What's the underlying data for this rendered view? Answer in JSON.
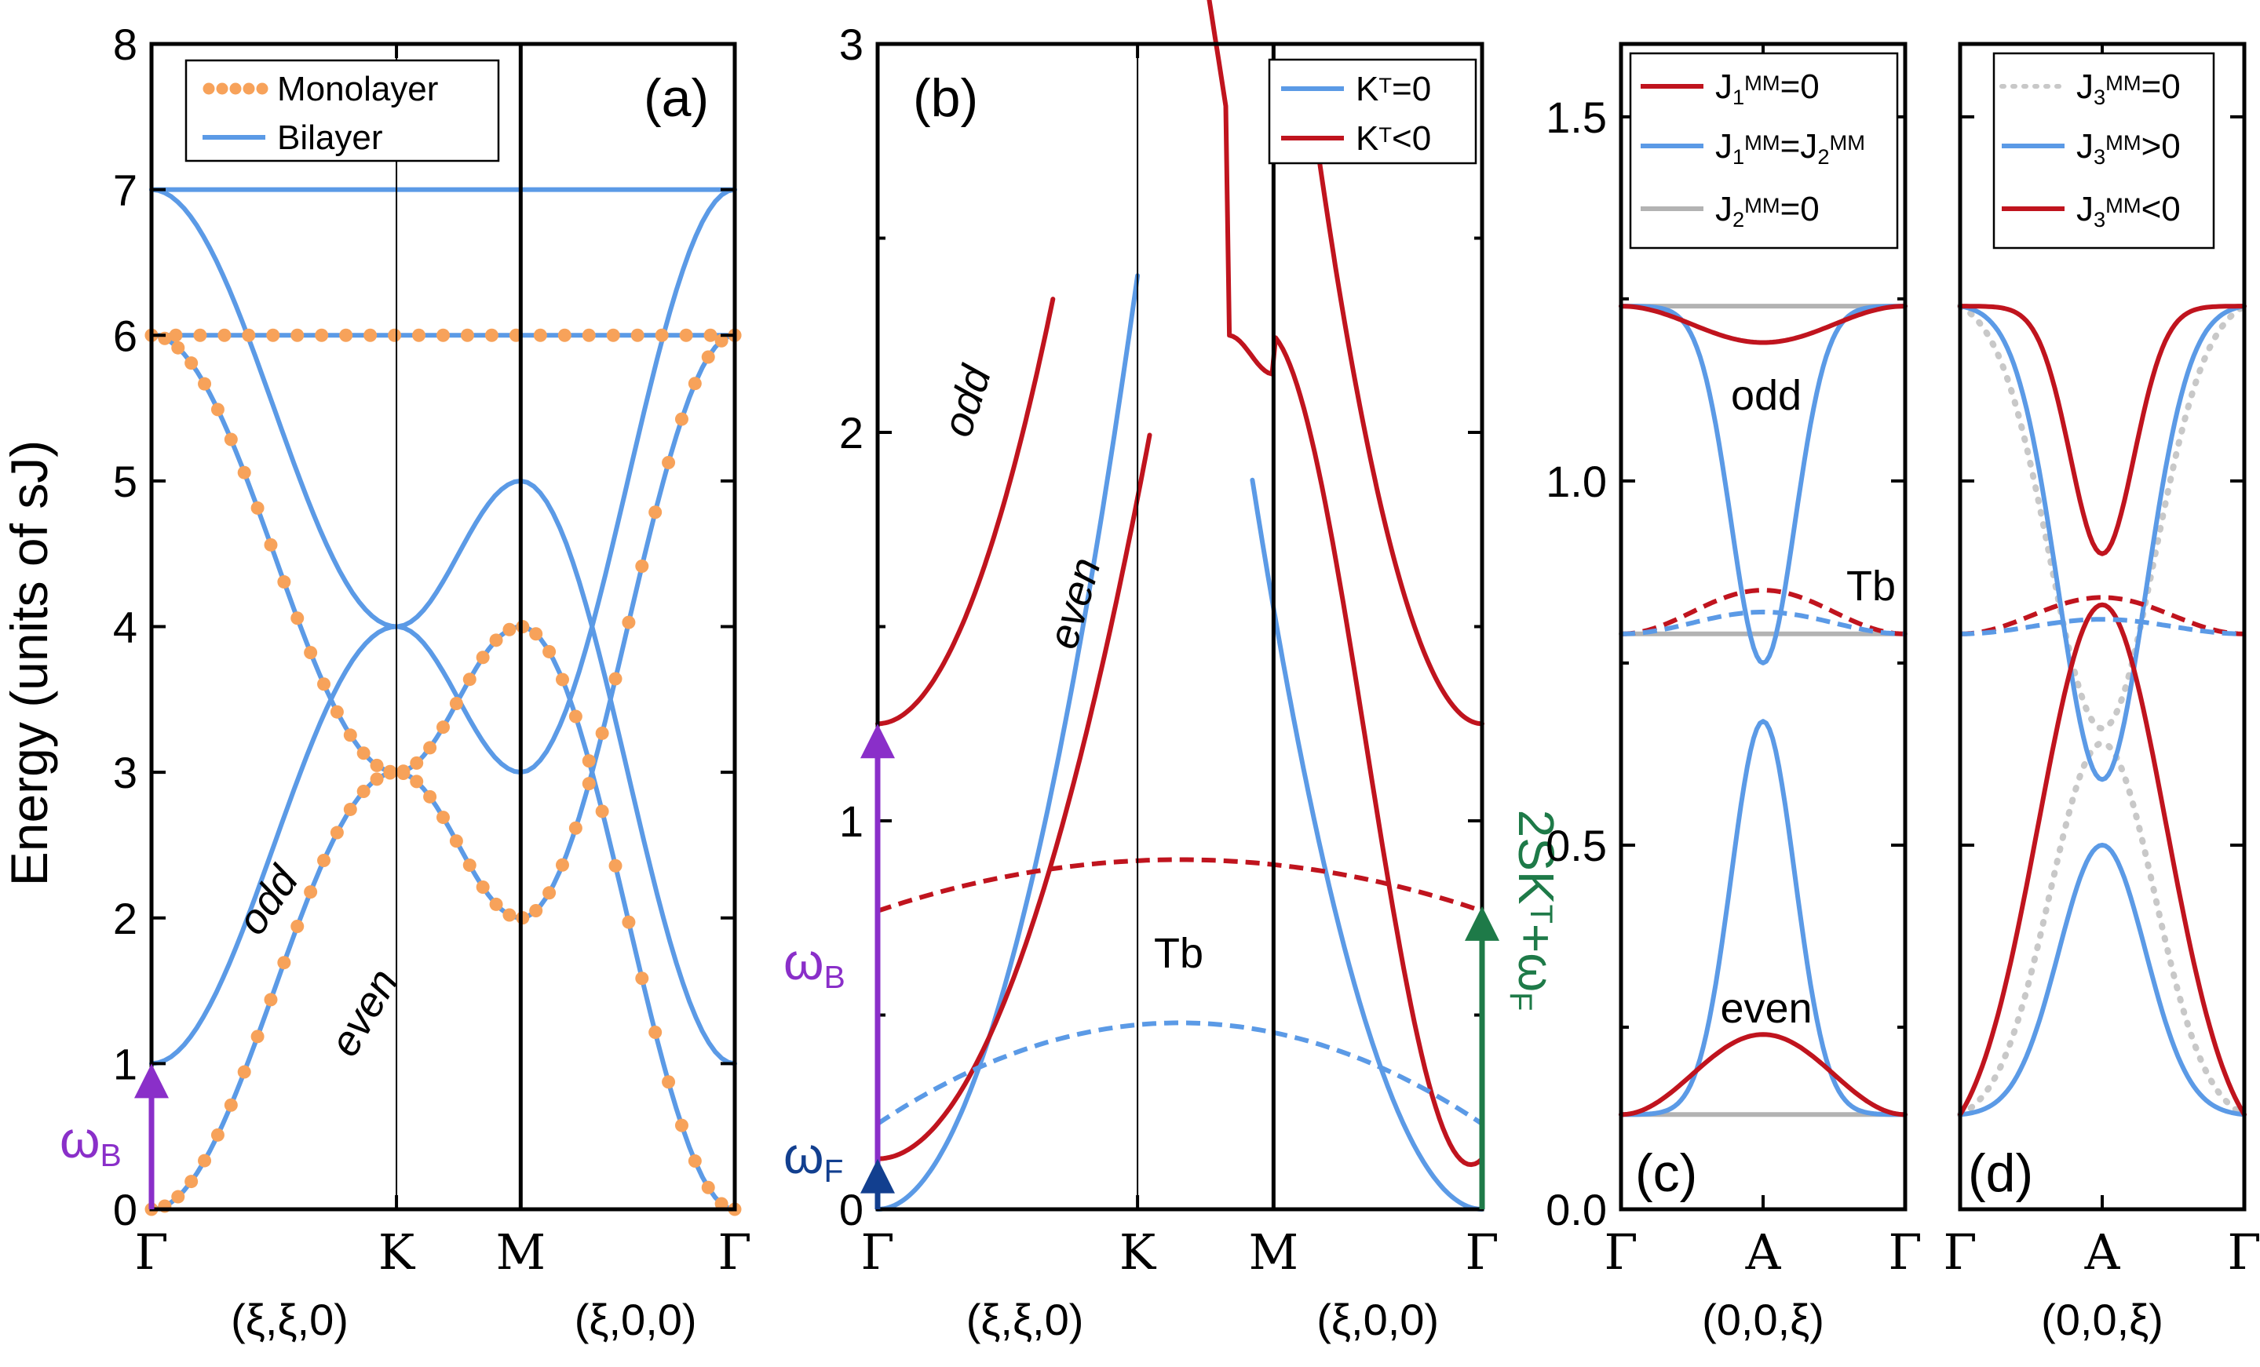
{
  "colors": {
    "blue": "#5b9ae6",
    "red": "#c0141e",
    "orange": "#f7a25a",
    "gray": "#b3b3b3",
    "lightgray": "#c8c8c8",
    "purple": "#8a2fc9",
    "navy": "#123f8f",
    "green": "#1e7a48"
  },
  "y_axis_label": "Energy (units of sJ)",
  "chart_data": [
    {
      "type": "line",
      "panel": "(a)",
      "x_ticks": [
        "Γ",
        "K",
        "M",
        "Γ"
      ],
      "x_sublabels": [
        "(ξ,ξ,0)",
        "(ξ,0,0)"
      ],
      "ylabel": "Energy (units of sJ)",
      "ylim": [
        0,
        8
      ],
      "y_ticks": [
        "0",
        "1",
        "2",
        "3",
        "4",
        "5",
        "6",
        "7",
        "8"
      ],
      "legend": [
        {
          "label": "Monolayer",
          "color": "orange",
          "style": "dots"
        },
        {
          "label": "Bilayer",
          "color": "blue",
          "style": "solid"
        }
      ],
      "annotations": [
        "odd",
        "even",
        "ωB"
      ],
      "series": [
        {
          "name": "Monolayer",
          "bands": "acoustic 0 at Γ, 3 at K, 4 at M; optical 6 at Γ, 3 at K, 2 at M; flat 6"
        },
        {
          "name": "Bilayer",
          "bands": "even branch 0→3 at K; odd branch 1 at Γ, 4 at K, 5 at M; top flat 7"
        }
      ]
    },
    {
      "type": "line",
      "panel": "(b)",
      "x_ticks": [
        "Γ",
        "K",
        "M",
        "Γ"
      ],
      "x_sublabels": [
        "(ξ,ξ,0)",
        "(ξ,0,0)"
      ],
      "ylim": [
        0,
        3
      ],
      "y_ticks": [
        "0",
        "1",
        "2",
        "3"
      ],
      "legend": [
        {
          "label": "K",
          "sup": "T",
          "suffix": "=0",
          "color": "blue"
        },
        {
          "label": "K",
          "sup": "T",
          "suffix": "<0",
          "color": "red"
        }
      ],
      "annotations": [
        "odd",
        "even",
        "Tb",
        "ωB",
        "ωF",
        "2SK",
        "T",
        "+ω",
        "F"
      ],
      "values": {
        "odd_gap_at_Gamma": 1.25,
        "M_shoulder": 2.25,
        "Tb_red_max": 0.9,
        "Tb_blue_max": 0.48,
        "omega_F": 0.13
      }
    },
    {
      "type": "line",
      "panel": "(c)",
      "x_ticks": [
        "Γ",
        "A",
        "Γ"
      ],
      "x_sublabel": "(0,0,ξ)",
      "ylim": [
        0,
        1.6
      ],
      "y_ticks": [
        "0.0",
        "0.5",
        "1.0",
        "1.5"
      ],
      "legend": [
        {
          "label": "J",
          "sub": "1",
          "sup": "MM",
          "suffix": "=0",
          "color": "red"
        },
        {
          "label": "J",
          "sub": "1",
          "sup": "MM",
          "suffix": "=J",
          "sub2": "2",
          "sup2": "MM",
          "color": "blue"
        },
        {
          "label": "J",
          "sub": "2",
          "sup": "MM",
          "suffix": "=0",
          "color": "gray"
        }
      ],
      "annotations": [
        "odd",
        "even",
        "Tb"
      ],
      "values": {
        "top_at_Gamma": 1.24,
        "bottom_at_Gamma": 0.13,
        "red_odd_min": 1.19,
        "blue_odd_min": 0.75,
        "blue_even_max": 0.67,
        "red_even_max": 0.24,
        "Tb_gray": 0.79,
        "Tb_red_max": 0.85
      }
    },
    {
      "type": "line",
      "panel": "(d)",
      "x_ticks": [
        "Γ",
        "A",
        "Γ"
      ],
      "x_sublabel": "(0,0,ξ)",
      "ylim": [
        0,
        1.6
      ],
      "legend": [
        {
          "label": "J",
          "sub": "3",
          "sup": "MM",
          "suffix": "=0",
          "color": "lightgray"
        },
        {
          "label": "J",
          "sub": "3",
          "sup": "MM",
          "suffix": ">0",
          "color": "blue"
        },
        {
          "label": "J",
          "sub": "3",
          "sup": "MM",
          "suffix": "<0",
          "color": "red"
        }
      ],
      "values": {
        "red_upper_min": 0.9,
        "red_lower_max": 0.83,
        "blue_upper_min": 0.59,
        "blue_lower_max": 0.5
      }
    }
  ]
}
